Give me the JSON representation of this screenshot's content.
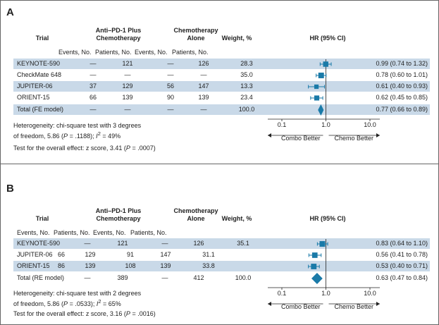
{
  "panels": [
    {
      "label": "A",
      "headers": {
        "trial": "Trial",
        "arm1_line1": "Anti–PD-1 Plus",
        "arm1_line2": "Chemotherapy",
        "arm2_line1": "Chemotherapy",
        "arm2_line2": "Alone",
        "weight": "Weight, %",
        "hr": "HR (95% CI)"
      },
      "subheaders": [
        "Events, No.",
        "Patients, No.",
        "Events, No.",
        "Patients, No."
      ],
      "rows": [
        {
          "trial": "KEYNOTE-590",
          "e1": "—",
          "p1": "121",
          "e2": "—",
          "p2": "126",
          "weight": "28.3",
          "hr_text": "0.99 (0.74 to 1.32)"
        },
        {
          "trial": "CheckMate 648",
          "e1": "—",
          "p1": "—",
          "e2": "—",
          "p2": "—",
          "weight": "35.0",
          "hr_text": "0.78 (0.60 to 1.01)"
        },
        {
          "trial": "JUPITER-06",
          "e1": "37",
          "p1": "129",
          "e2": "56",
          "p2": "147",
          "weight": "13.3",
          "hr_text": "0.61 (0.40 to 0.93)"
        },
        {
          "trial": "ORIENT-15",
          "e1": "66",
          "p1": "139",
          "e2": "90",
          "p2": "139",
          "weight": "23.4",
          "hr_text": "0.62 (0.45 to 0.85)"
        },
        {
          "trial": "Total (FE model)",
          "e1": "—",
          "p1": "—",
          "e2": "—",
          "p2": "—",
          "weight": "100.0",
          "hr_text": "0.77 (0.66 to 0.89)"
        }
      ],
      "het_line1": "Heterogeneity: chi-square test with 3 degrees",
      "het_line2_a": "of freedom, 5.86 (",
      "het_p": "P",
      "het_line2_b": " = .1188); ",
      "het_i2": "I",
      "het_line2_c": " = 49%",
      "overall_a": "Test for the overall effect: z score, 3.41 (",
      "overall_p": "P",
      "overall_b": " = .0007)",
      "axis_left": "Combo Better",
      "axis_right": "Chemo Better"
    },
    {
      "label": "B",
      "headers": {
        "trial": "Trial",
        "arm1_line1": "Anti–PD-1 Plus",
        "arm1_line2": "Chemotherapy",
        "arm2_line1": "Chemotherapy",
        "arm2_line2": "Alone",
        "weight": "Weight, %",
        "hr": "HR (95% CI)"
      },
      "subheaders": [
        "Events, No.",
        "Patients, No.",
        "Events, No.",
        "Patients, No."
      ],
      "rows": [
        {
          "trial": "KEYNOTE-590",
          "e1": "—",
          "p1": "121",
          "e2": "—",
          "p2": "126",
          "weight": "35.1",
          "hr_text": "0.83 (0.64 to 1.10)"
        },
        {
          "trial": "JUPITER-06",
          "e1": "66",
          "p1": "129",
          "e2": "91",
          "p2": "147",
          "weight": "31.1",
          "hr_text": "0.56 (0.41 to 0.78)"
        },
        {
          "trial": "ORIENT-15",
          "e1": "86",
          "p1": "139",
          "e2": "108",
          "p2": "139",
          "weight": "33.8",
          "hr_text": "0.53 (0.40 to 0.71)"
        },
        {
          "trial": "Total (RE model)",
          "e1": "—",
          "p1": "389",
          "e2": "—",
          "p2": "412",
          "weight": "100.0",
          "hr_text": "0.63 (0.47 to 0.84)"
        }
      ],
      "het_line1": "Heterogeneity: chi-square test with 2 degrees",
      "het_line2_a": "of freedom, 5.86 (",
      "het_p": "P",
      "het_line2_b": " = .0533); ",
      "het_i2": "I",
      "het_line2_c": " = 65%",
      "overall_a": "Test for the overall effect: z score, 3.16 (",
      "overall_p": "P",
      "overall_b": " = .0016)",
      "axis_left": "Combo Better",
      "axis_right": "Chemo Better"
    }
  ],
  "chart_data": [
    {
      "type": "forest",
      "title": "A",
      "xscale": "log",
      "xlim": [
        0.1,
        10
      ],
      "ticks": [
        0.1,
        1.0,
        10.0
      ],
      "tick_labels": [
        "0.1",
        "1.0",
        "10.0"
      ],
      "series": [
        {
          "name": "KEYNOTE-590",
          "hr": 0.99,
          "lo": 0.74,
          "hi": 1.32,
          "weight": 28.3
        },
        {
          "name": "CheckMate 648",
          "hr": 0.78,
          "lo": 0.6,
          "hi": 1.01,
          "weight": 35.0
        },
        {
          "name": "JUPITER-06",
          "hr": 0.61,
          "lo": 0.4,
          "hi": 0.93,
          "weight": 13.3
        },
        {
          "name": "ORIENT-15",
          "hr": 0.62,
          "lo": 0.45,
          "hi": 0.85,
          "weight": 23.4
        },
        {
          "name": "Total (FE model)",
          "hr": 0.77,
          "lo": 0.66,
          "hi": 0.89,
          "weight": 100.0,
          "summary": true
        }
      ],
      "xlabel_left": "Combo Better",
      "xlabel_right": "Chemo Better"
    },
    {
      "type": "forest",
      "title": "B",
      "xscale": "log",
      "xlim": [
        0.1,
        10
      ],
      "ticks": [
        0.1,
        1.0,
        10.0
      ],
      "tick_labels": [
        "0.1",
        "1.0",
        "10.0"
      ],
      "series": [
        {
          "name": "KEYNOTE-590",
          "hr": 0.83,
          "lo": 0.64,
          "hi": 1.1,
          "weight": 35.1
        },
        {
          "name": "JUPITER-06",
          "hr": 0.56,
          "lo": 0.41,
          "hi": 0.78,
          "weight": 31.1
        },
        {
          "name": "ORIENT-15",
          "hr": 0.53,
          "lo": 0.4,
          "hi": 0.71,
          "weight": 33.8
        },
        {
          "name": "Total (RE model)",
          "hr": 0.63,
          "lo": 0.47,
          "hi": 0.84,
          "weight": 100.0,
          "summary": true
        }
      ],
      "xlabel_left": "Combo Better",
      "xlabel_right": "Chemo Better"
    }
  ],
  "colors": {
    "marker": "#1a7aa8",
    "shade": "#c9d9e8",
    "line": "#222222"
  }
}
